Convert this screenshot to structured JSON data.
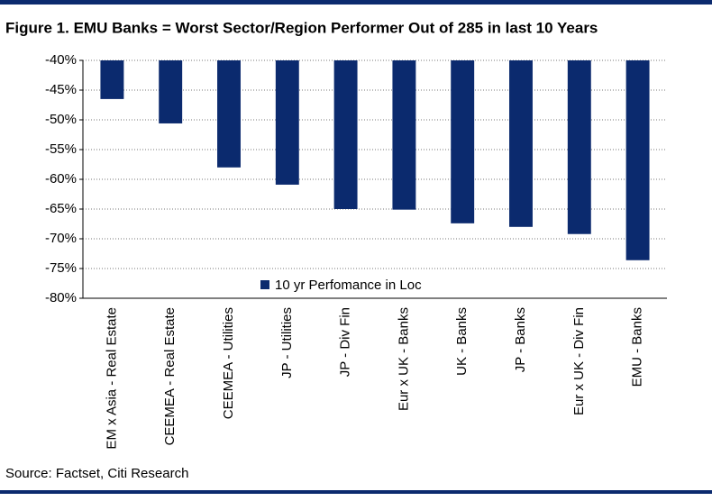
{
  "chart_data": {
    "type": "bar",
    "title": "Figure 1. EMU Banks = Worst Sector/Region Performer Out of 285 in last 10 Years",
    "source": "Source: Factset, Citi Research",
    "categories": [
      "EM x Asia - Real Estate",
      "CEEMEA - Real Estate",
      "CEEMEA - Utilities",
      "JP - Utilities",
      "JP - Div Fin",
      "Eur x UK - Banks",
      "UK - Banks",
      "JP - Banks",
      "Eur x UK - Div Fin",
      "EMU - Banks"
    ],
    "series": [
      {
        "name": "10 yr Perfomance in Loc",
        "color": "#0b2a6e",
        "values": [
          -46.5,
          -50.6,
          -58,
          -60.9,
          -65,
          -65.1,
          -67.4,
          -68,
          -69.2,
          -73.6
        ]
      }
    ],
    "ylim": [
      -80,
      -40
    ],
    "yticks": [
      {
        "value": -40,
        "label": "-40%"
      },
      {
        "value": -45,
        "label": "-45%"
      },
      {
        "value": -50,
        "label": "-50%"
      },
      {
        "value": -55,
        "label": "-55%"
      },
      {
        "value": -60,
        "label": "-60%"
      },
      {
        "value": -65,
        "label": "-65%"
      },
      {
        "value": -70,
        "label": "-70%"
      },
      {
        "value": -75,
        "label": "-75%"
      },
      {
        "value": -80,
        "label": "-80%"
      }
    ],
    "grid": true
  }
}
